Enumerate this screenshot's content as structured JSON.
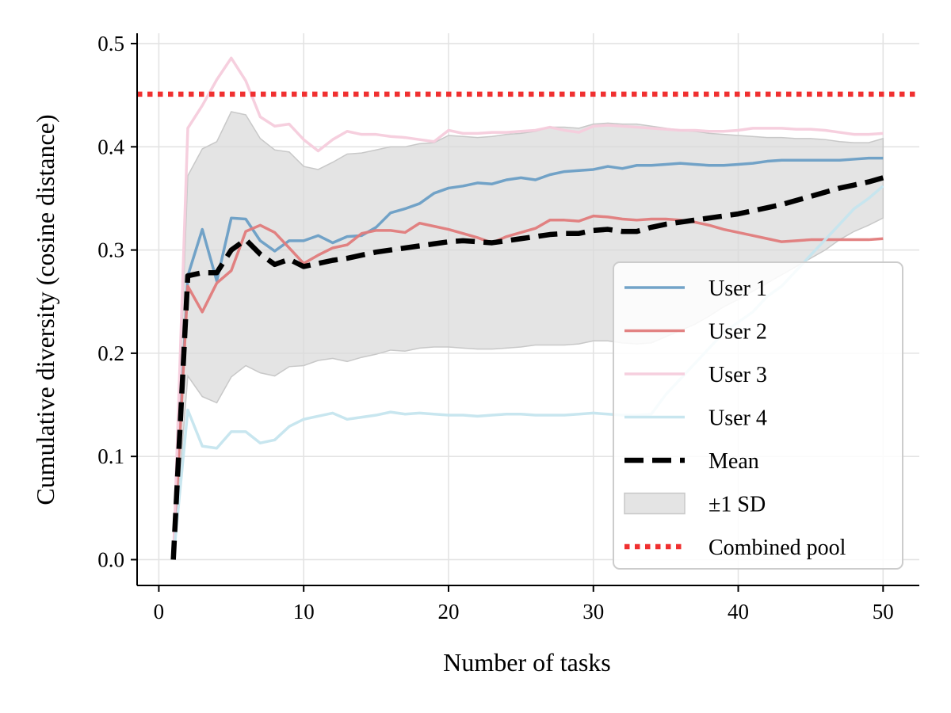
{
  "chart_data": {
    "type": "line",
    "title": "",
    "xlabel": "Number of tasks",
    "ylabel": "Cumulative diversity (cosine distance)",
    "xlim": [
      -1.5,
      52.5
    ],
    "ylim": [
      -0.025,
      0.51
    ],
    "xticks": [
      0,
      10,
      20,
      30,
      40,
      50
    ],
    "yticks": [
      0.0,
      0.1,
      0.2,
      0.3,
      0.4,
      0.5
    ],
    "xtick_labels": [
      "0",
      "10",
      "20",
      "30",
      "40",
      "50"
    ],
    "ytick_labels": [
      "0.0",
      "0.1",
      "0.2",
      "0.3",
      "0.4",
      "0.5"
    ],
    "grid": true,
    "legend_position": "lower-right",
    "x": [
      1,
      2,
      3,
      4,
      5,
      6,
      7,
      8,
      9,
      10,
      11,
      12,
      13,
      14,
      15,
      16,
      17,
      18,
      19,
      20,
      21,
      22,
      23,
      24,
      25,
      26,
      27,
      28,
      29,
      30,
      31,
      32,
      33,
      34,
      35,
      36,
      37,
      38,
      39,
      40,
      41,
      42,
      43,
      44,
      45,
      46,
      47,
      48,
      49,
      50
    ],
    "series": [
      {
        "name": "User 1",
        "color": "#6a9ec5",
        "style": "solid",
        "values": [
          0.0,
          0.275,
          0.32,
          0.27,
          0.331,
          0.33,
          0.309,
          0.299,
          0.309,
          0.309,
          0.314,
          0.307,
          0.313,
          0.314,
          0.322,
          0.336,
          0.34,
          0.345,
          0.355,
          0.36,
          0.362,
          0.365,
          0.364,
          0.368,
          0.37,
          0.368,
          0.373,
          0.376,
          0.377,
          0.378,
          0.381,
          0.379,
          0.382,
          0.382,
          0.383,
          0.384,
          0.383,
          0.382,
          0.382,
          0.383,
          0.384,
          0.386,
          0.387,
          0.387,
          0.387,
          0.387,
          0.387,
          0.388,
          0.389,
          0.389
        ]
      },
      {
        "name": "User 2",
        "color": "#e07b7b",
        "style": "solid",
        "values": [
          0.0,
          0.265,
          0.24,
          0.268,
          0.28,
          0.318,
          0.324,
          0.317,
          0.302,
          0.287,
          0.295,
          0.302,
          0.305,
          0.316,
          0.319,
          0.319,
          0.317,
          0.326,
          0.323,
          0.32,
          0.316,
          0.312,
          0.307,
          0.313,
          0.317,
          0.321,
          0.329,
          0.329,
          0.328,
          0.333,
          0.332,
          0.33,
          0.329,
          0.33,
          0.33,
          0.329,
          0.327,
          0.324,
          0.32,
          0.317,
          0.314,
          0.311,
          0.308,
          0.309,
          0.31,
          0.31,
          0.31,
          0.31,
          0.31,
          0.311
        ]
      },
      {
        "name": "User 3",
        "color": "#f6ccdc",
        "style": "solid",
        "values": [
          0.0,
          0.418,
          0.44,
          0.465,
          0.486,
          0.464,
          0.429,
          0.42,
          0.422,
          0.407,
          0.396,
          0.407,
          0.415,
          0.412,
          0.412,
          0.41,
          0.409,
          0.407,
          0.405,
          0.416,
          0.413,
          0.413,
          0.414,
          0.414,
          0.415,
          0.416,
          0.419,
          0.416,
          0.414,
          0.42,
          0.421,
          0.42,
          0.419,
          0.418,
          0.417,
          0.416,
          0.416,
          0.415,
          0.415,
          0.416,
          0.418,
          0.418,
          0.418,
          0.417,
          0.417,
          0.416,
          0.414,
          0.412,
          0.412,
          0.413
        ]
      },
      {
        "name": "User 4",
        "color": "#c5e5ee",
        "style": "solid",
        "values": [
          0.0,
          0.145,
          0.11,
          0.108,
          0.124,
          0.124,
          0.113,
          0.116,
          0.129,
          0.136,
          0.139,
          0.142,
          0.136,
          0.138,
          0.14,
          0.143,
          0.141,
          0.142,
          0.141,
          0.14,
          0.14,
          0.139,
          0.14,
          0.141,
          0.141,
          0.14,
          0.14,
          0.14,
          0.141,
          0.142,
          0.141,
          0.14,
          0.14,
          0.141,
          0.16,
          0.175,
          0.19,
          0.205,
          0.22,
          0.23,
          0.24,
          0.255,
          0.265,
          0.28,
          0.295,
          0.31,
          0.325,
          0.34,
          0.35,
          0.362
        ]
      },
      {
        "name": "Mean",
        "color": "#000000",
        "style": "dashed",
        "values": [
          0.0,
          0.275,
          0.278,
          0.278,
          0.3,
          0.31,
          0.296,
          0.286,
          0.291,
          0.284,
          0.287,
          0.29,
          0.292,
          0.295,
          0.298,
          0.3,
          0.302,
          0.304,
          0.306,
          0.308,
          0.309,
          0.308,
          0.307,
          0.309,
          0.311,
          0.313,
          0.315,
          0.316,
          0.316,
          0.319,
          0.32,
          0.318,
          0.318,
          0.322,
          0.325,
          0.327,
          0.329,
          0.331,
          0.333,
          0.335,
          0.338,
          0.341,
          0.344,
          0.348,
          0.352,
          0.356,
          0.36,
          0.363,
          0.366,
          0.37
        ]
      }
    ],
    "band": {
      "name": "±1 SD",
      "color": "#d9d9d9",
      "upper": [
        0.0,
        0.372,
        0.398,
        0.405,
        0.434,
        0.431,
        0.408,
        0.397,
        0.395,
        0.381,
        0.378,
        0.385,
        0.393,
        0.394,
        0.397,
        0.4,
        0.4,
        0.403,
        0.404,
        0.411,
        0.41,
        0.409,
        0.41,
        0.412,
        0.413,
        0.415,
        0.419,
        0.419,
        0.418,
        0.422,
        0.423,
        0.422,
        0.422,
        0.42,
        0.418,
        0.416,
        0.415,
        0.413,
        0.412,
        0.411,
        0.41,
        0.409,
        0.409,
        0.408,
        0.408,
        0.407,
        0.405,
        0.404,
        0.404,
        0.408
      ],
      "lower": [
        0.0,
        0.178,
        0.158,
        0.152,
        0.177,
        0.188,
        0.181,
        0.178,
        0.187,
        0.188,
        0.193,
        0.195,
        0.192,
        0.196,
        0.199,
        0.203,
        0.202,
        0.205,
        0.206,
        0.206,
        0.205,
        0.204,
        0.204,
        0.205,
        0.206,
        0.208,
        0.208,
        0.208,
        0.209,
        0.212,
        0.212,
        0.21,
        0.209,
        0.21,
        0.216,
        0.222,
        0.228,
        0.236,
        0.245,
        0.252,
        0.26,
        0.268,
        0.276,
        0.284,
        0.292,
        0.3,
        0.31,
        0.318,
        0.324,
        0.331
      ]
    },
    "reference_line": {
      "name": "Combined pool",
      "color": "#f03030",
      "style": "dotted",
      "value": 0.451
    }
  }
}
